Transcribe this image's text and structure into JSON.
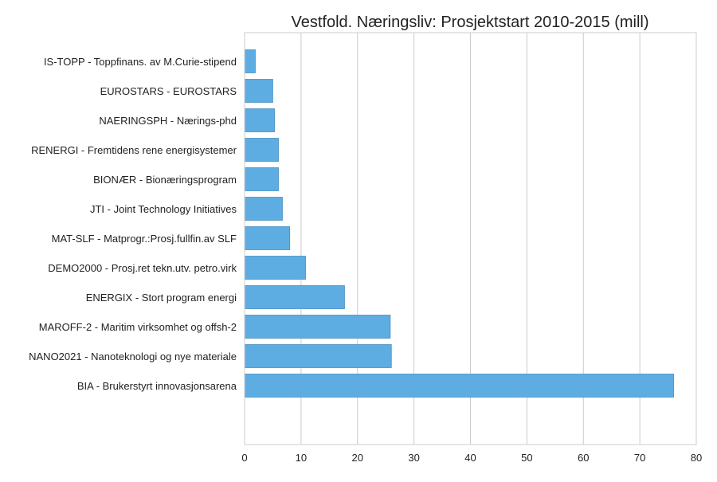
{
  "chart_data": {
    "type": "bar",
    "orientation": "horizontal",
    "title": "Vestfold. Næringsliv: Prosjektstart 2010-2015 (mill)",
    "xlabel": "",
    "ylabel": "",
    "xlim": [
      0,
      80
    ],
    "xticks": [
      "0",
      "10",
      "20",
      "30",
      "40",
      "50",
      "60",
      "70",
      "80"
    ],
    "grid": true,
    "categories": [
      "IS-TOPP - Toppfinans. av M.Curie-stipend",
      "EUROSTARS - EUROSTARS",
      "NAERINGSPH - Nærings-phd",
      "RENERGI - Fremtidens rene energisystemer",
      "BIONÆR - Bionæringsprogram",
      "JTI - Joint Technology Initiatives",
      "MAT-SLF - Matprogr.:Prosj.fullfin.av SLF",
      "DEMO2000 - Prosj.ret tekn.utv. petro.virk",
      "ENERGIX - Stort program energi",
      "MAROFF-2 - Maritim virksomhet og offsh-2",
      "NANO2021 - Nanoteknologi og nye materiale",
      "BIA - Brukerstyrt innovasjonsarena"
    ],
    "values": [
      1.9,
      5.0,
      5.3,
      6.0,
      6.0,
      6.7,
      8.0,
      10.8,
      17.7,
      25.8,
      26.0,
      76.0
    ],
    "colors": {
      "bar_fill": "#5dade2",
      "bar_stroke": "#4a90c0",
      "grid": "#cccccc",
      "frame": "#cccccc",
      "text": "#222222"
    }
  }
}
